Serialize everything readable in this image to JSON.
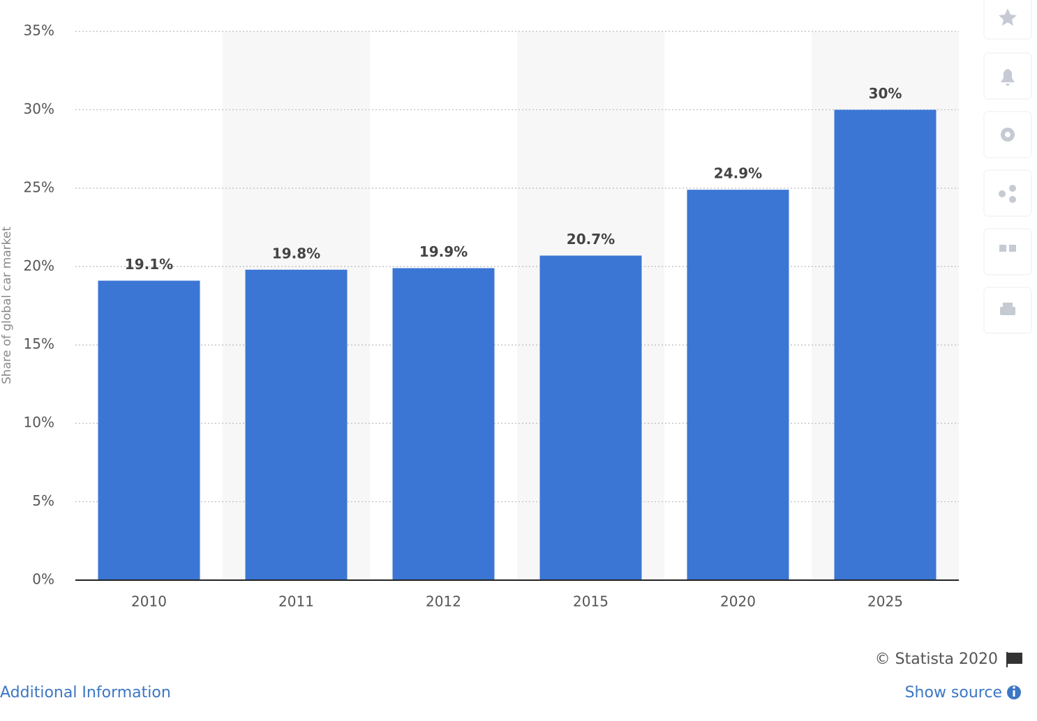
{
  "chart_data": {
    "type": "bar",
    "y_label": "Share of global car market",
    "categories": [
      "2010",
      "2011",
      "2012",
      "2015",
      "2020",
      "2025"
    ],
    "values": [
      19.1,
      19.8,
      19.9,
      20.7,
      24.9,
      30
    ],
    "value_labels": [
      "19.1%",
      "19.8%",
      "19.9%",
      "20.7%",
      "24.9%",
      "30%"
    ],
    "color": "#3b76d5",
    "ylim": [
      0,
      35
    ],
    "yticks": [
      {
        "value": 0,
        "label": "0%"
      },
      {
        "value": 5,
        "label": "5%"
      },
      {
        "value": 10,
        "label": "10%"
      },
      {
        "value": 15,
        "label": "15%"
      },
      {
        "value": 20,
        "label": "20%"
      },
      {
        "value": 25,
        "label": "25%"
      },
      {
        "value": 30,
        "label": "30%"
      },
      {
        "value": 35,
        "label": "35%"
      }
    ],
    "grid": true
  },
  "footer": {
    "copyright": "© Statista 2020",
    "additional_information": "Additional Information",
    "show_source": "Show source"
  }
}
